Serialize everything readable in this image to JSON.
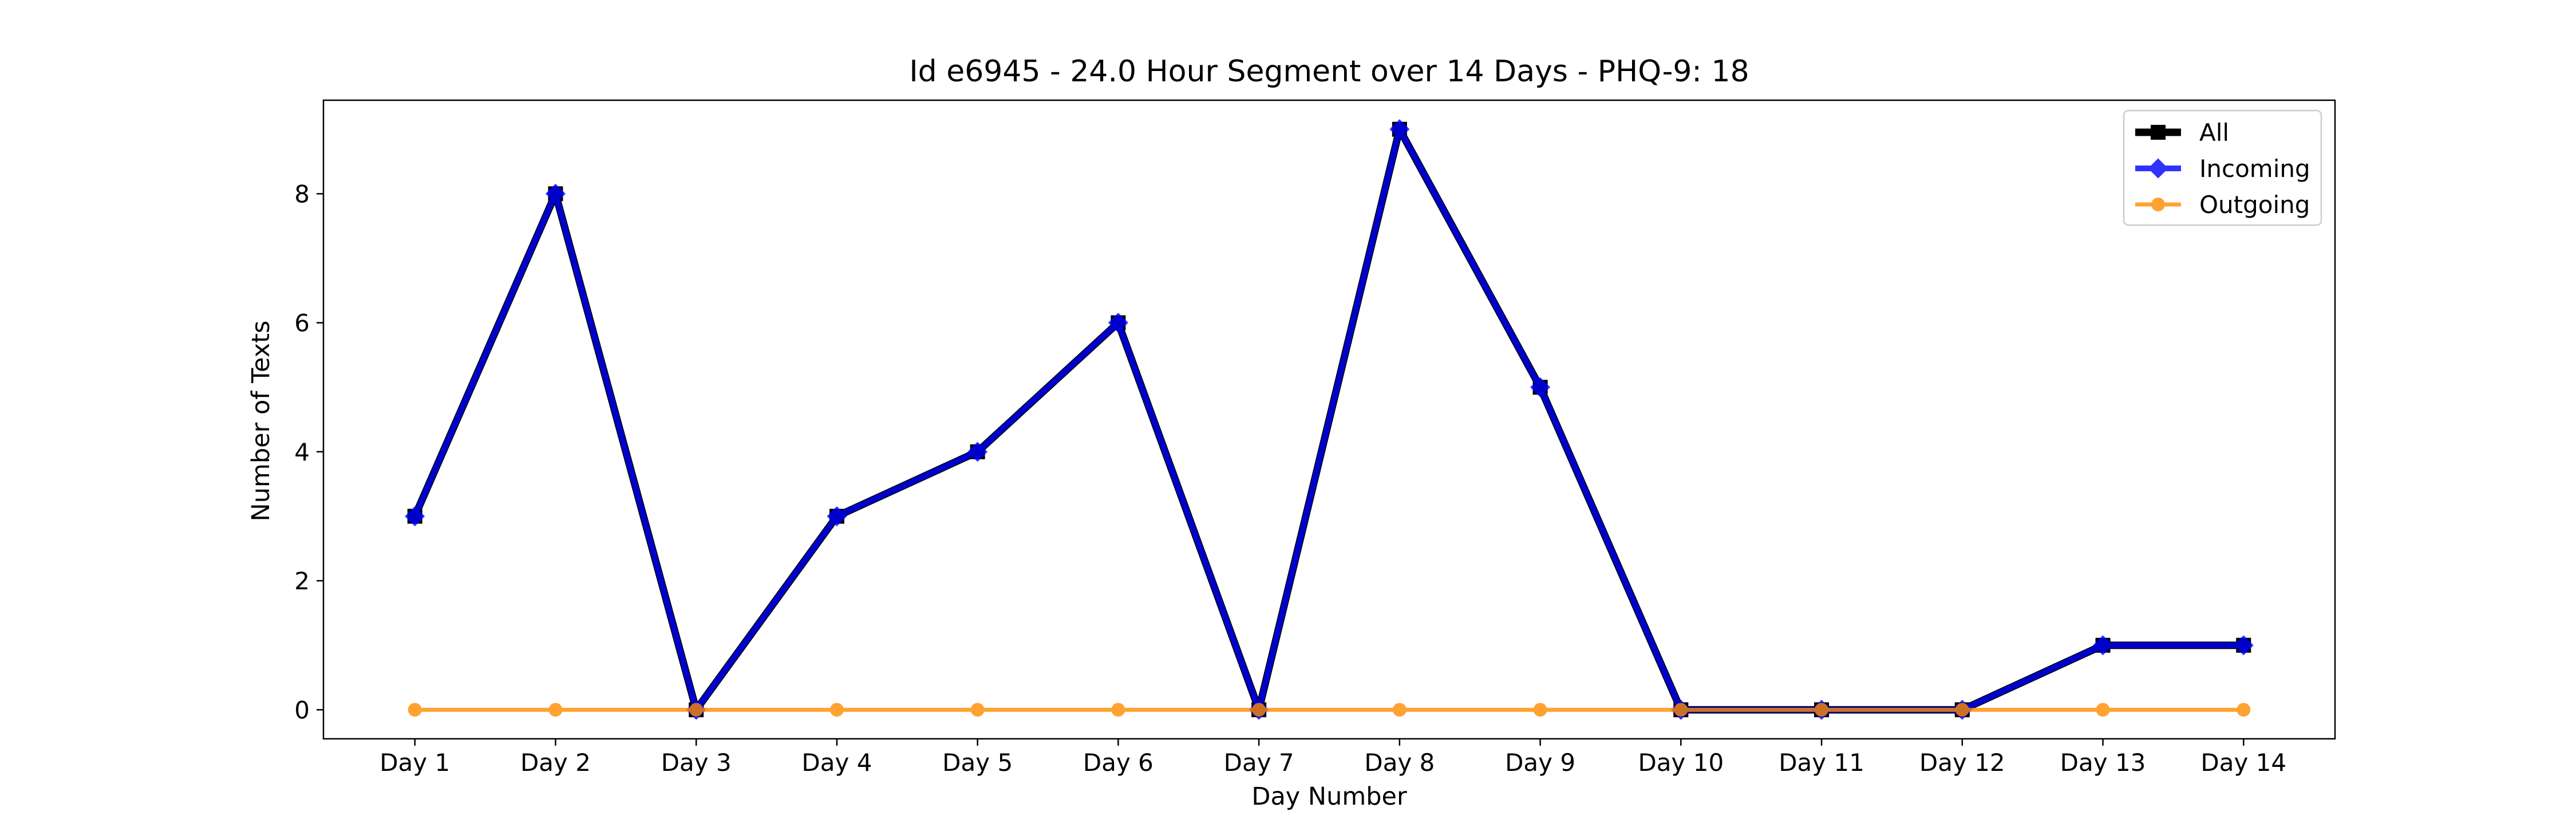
{
  "chart_data": {
    "type": "line",
    "title": "Id e6945 - 24.0 Hour Segment over 14 Days - PHQ-9: 18",
    "xlabel": "Day Number",
    "ylabel": "Number of Texts",
    "categories": [
      "Day 1",
      "Day 2",
      "Day 3",
      "Day 4",
      "Day 5",
      "Day 6",
      "Day 7",
      "Day 8",
      "Day 9",
      "Day 10",
      "Day 11",
      "Day 12",
      "Day 13",
      "Day 14"
    ],
    "yticks": [
      0,
      2,
      4,
      6,
      8
    ],
    "ylim": [
      -0.45,
      9.45
    ],
    "grid": false,
    "legend_position": "top-right",
    "series": [
      {
        "name": "All",
        "values": [
          3,
          8,
          0,
          3,
          4,
          6,
          0,
          9,
          5,
          0,
          0,
          0,
          1,
          1
        ],
        "color": "#000000",
        "marker": "square"
      },
      {
        "name": "Incoming",
        "values": [
          3,
          8,
          0,
          3,
          4,
          6,
          0,
          9,
          5,
          0,
          0,
          0,
          1,
          1
        ],
        "color": "#0000ff",
        "marker": "diamond"
      },
      {
        "name": "Outgoing",
        "values": [
          0,
          0,
          0,
          0,
          0,
          0,
          0,
          0,
          0,
          0,
          0,
          0,
          0,
          0
        ],
        "color": "#ff8c00",
        "marker": "circle"
      }
    ]
  }
}
